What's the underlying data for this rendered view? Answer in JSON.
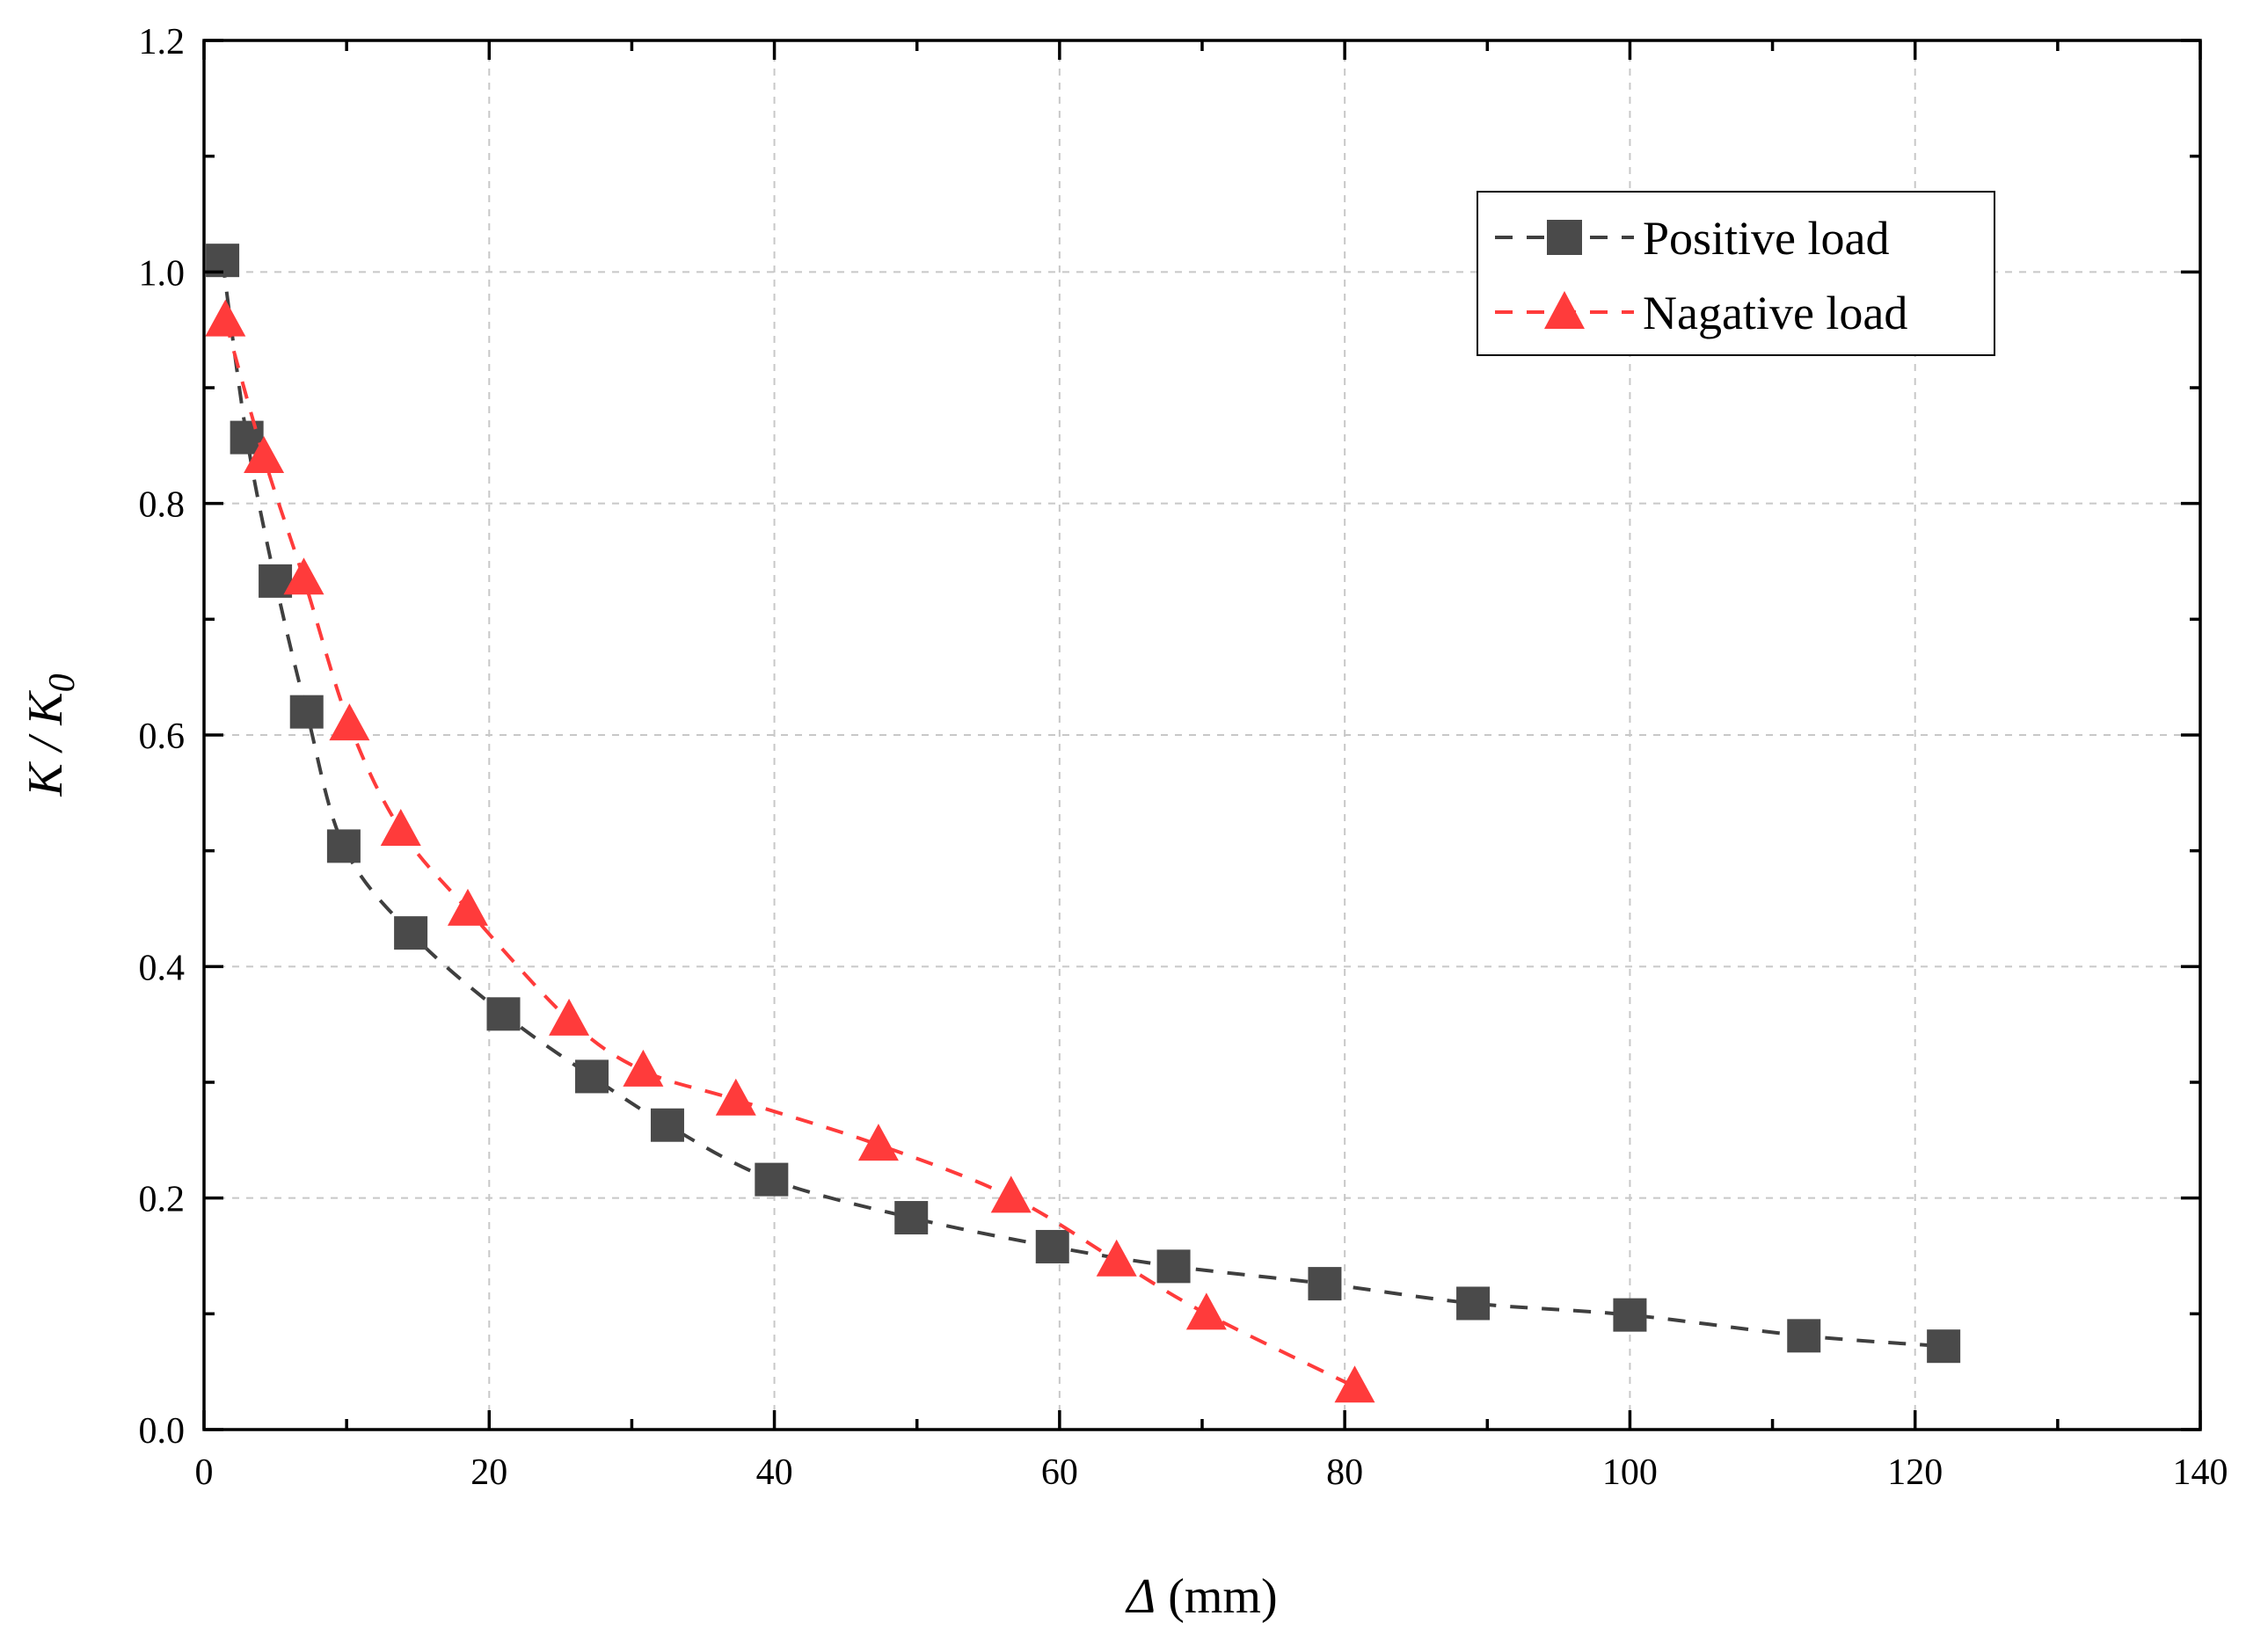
{
  "chart_data": {
    "type": "line",
    "xlabel_symbol": "Δ",
    "xlabel_unit": " (mm)",
    "ylabel_main": "K / K",
    "ylabel_sub": "0",
    "xlim": [
      0,
      140
    ],
    "ylim": [
      0,
      1.2
    ],
    "xticks": [
      0,
      20,
      40,
      60,
      80,
      100,
      120,
      140
    ],
    "yticks": [
      0.0,
      0.2,
      0.4,
      0.6,
      0.8,
      1.0,
      1.2
    ],
    "xtick_labels": [
      "0",
      "20",
      "40",
      "60",
      "80",
      "100",
      "120",
      "140"
    ],
    "ytick_labels": [
      "0.0",
      "0.2",
      "0.4",
      "0.6",
      "0.8",
      "1.0",
      "1.2"
    ],
    "grid": true,
    "legend_position": "top-right",
    "series": [
      {
        "name": "Positive load",
        "color": "#3f3f3f",
        "marker": "square",
        "x": [
          1.3,
          3.0,
          5.0,
          7.2,
          9.8,
          14.5,
          21.0,
          27.2,
          32.5,
          39.8,
          49.6,
          59.5,
          68.0,
          78.6,
          89.0,
          100.0,
          112.2,
          122.0
        ],
        "y": [
          1.01,
          0.857,
          0.733,
          0.62,
          0.504,
          0.429,
          0.359,
          0.305,
          0.263,
          0.216,
          0.183,
          0.158,
          0.141,
          0.126,
          0.109,
          0.099,
          0.081,
          0.072
        ]
      },
      {
        "name": "Nagative load",
        "color": "#ff3b3b",
        "marker": "triangle",
        "x": [
          1.5,
          4.2,
          7.0,
          10.2,
          13.8,
          18.5,
          25.6,
          30.8,
          37.3,
          47.3,
          56.6,
          64.0,
          70.3,
          80.7
        ],
        "y": [
          0.958,
          0.84,
          0.735,
          0.609,
          0.518,
          0.449,
          0.354,
          0.31,
          0.285,
          0.246,
          0.201,
          0.146,
          0.1,
          0.037
        ]
      }
    ]
  }
}
